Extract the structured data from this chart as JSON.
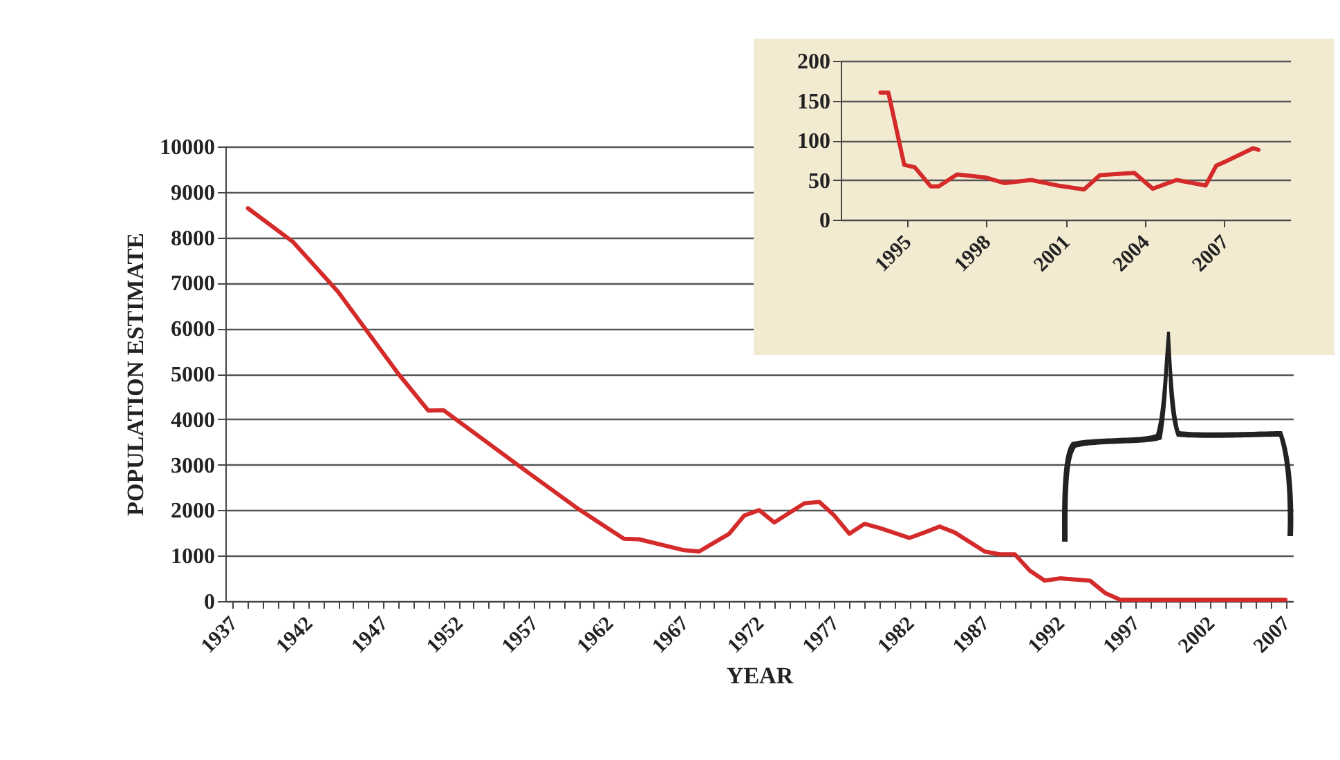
{
  "chart_data": [
    {
      "type": "line",
      "xlabel": "YEAR",
      "ylabel": "POPULATION ESTIMATE",
      "grid": "y",
      "color": "#d42a2a",
      "x": [
        1938,
        1941,
        1944,
        1948,
        1950,
        1951,
        1956,
        1960,
        1963,
        1964,
        1967,
        1968,
        1970,
        1971,
        1972,
        1973,
        1975,
        1976,
        1977,
        1978,
        1979,
        1980,
        1982,
        1983,
        1984,
        1985,
        1987,
        1988,
        1989,
        1990,
        1991,
        1992,
        1994,
        1995,
        1996,
        2007
      ],
      "values": [
        8640,
        7900,
        6800,
        5000,
        4190,
        4200,
        2980,
        2020,
        1370,
        1360,
        1120,
        1090,
        1480,
        1880,
        2000,
        1730,
        2150,
        2180,
        1880,
        1480,
        1700,
        1610,
        1390,
        1510,
        1640,
        1510,
        1090,
        1030,
        1030,
        670,
        450,
        500,
        450,
        180,
        30,
        30
      ],
      "xlim": [
        1936.5,
        2007.5
      ],
      "xticks": [
        1937,
        {
          "value": 1938,
          "label": null
        },
        {
          "value": 1939,
          "label": null
        },
        {
          "value": 1940,
          "label": null
        },
        {
          "value": 1941,
          "label": null
        },
        1942,
        {
          "value": 1943,
          "label": null
        },
        {
          "value": 1944,
          "label": null
        },
        {
          "value": 1945,
          "label": null
        },
        {
          "value": 1946,
          "label": null
        },
        1947,
        {
          "value": 1948,
          "label": null
        },
        {
          "value": 1949,
          "label": null
        },
        {
          "value": 1950,
          "label": null
        },
        {
          "value": 1951,
          "label": null
        },
        1952,
        {
          "value": 1953,
          "label": null
        },
        {
          "value": 1954,
          "label": null
        },
        {
          "value": 1955,
          "label": null
        },
        {
          "value": 1956,
          "label": null
        },
        1957,
        {
          "value": 1958,
          "label": null
        },
        {
          "value": 1959,
          "label": null
        },
        {
          "value": 1960,
          "label": null
        },
        {
          "value": 1961,
          "label": null
        },
        1962,
        {
          "value": 1963,
          "label": null
        },
        {
          "value": 1964,
          "label": null
        },
        {
          "value": 1965,
          "label": null
        },
        {
          "value": 1966,
          "label": null
        },
        1967,
        {
          "value": 1968,
          "label": null
        },
        {
          "value": 1969,
          "label": null
        },
        {
          "value": 1970,
          "label": null
        },
        {
          "value": 1971,
          "label": null
        },
        1972,
        {
          "value": 1973,
          "label": null
        },
        {
          "value": 1974,
          "label": null
        },
        {
          "value": 1975,
          "label": null
        },
        {
          "value": 1976,
          "label": null
        },
        1977,
        {
          "value": 1978,
          "label": null
        },
        {
          "value": 1979,
          "label": null
        },
        {
          "value": 1980,
          "label": null
        },
        {
          "value": 1981,
          "label": null
        },
        1982,
        {
          "value": 1983,
          "label": null
        },
        {
          "value": 1984,
          "label": null
        },
        {
          "value": 1985,
          "label": null
        },
        {
          "value": 1986,
          "label": null
        },
        1987,
        {
          "value": 1988,
          "label": null
        },
        {
          "value": 1989,
          "label": null
        },
        {
          "value": 1990,
          "label": null
        },
        {
          "value": 1991,
          "label": null
        },
        1992,
        {
          "value": 1993,
          "label": null
        },
        {
          "value": 1994,
          "label": null
        },
        {
          "value": 1995,
          "label": null
        },
        {
          "value": 1996,
          "label": null
        },
        1997,
        {
          "value": 1998,
          "label": null
        },
        {
          "value": 1999,
          "label": null
        },
        {
          "value": 2000,
          "label": null
        },
        {
          "value": 2001,
          "label": null
        },
        2002,
        {
          "value": 2003,
          "label": null
        },
        {
          "value": 2004,
          "label": null
        },
        {
          "value": 2005,
          "label": null
        },
        {
          "value": 2006,
          "label": null
        },
        2007
      ],
      "ylim": [
        0,
        10000
      ],
      "yticks": [
        0,
        1000,
        2000,
        3000,
        4000,
        5000,
        6000,
        7000,
        8000,
        9000,
        10000
      ]
    },
    {
      "type": "line",
      "grid": "y",
      "color": "#d42a2a",
      "x": [
        1994.0,
        1994.3,
        1994.9,
        1995.3,
        1995.9,
        1996.2,
        1996.9,
        1998.0,
        1998.7,
        1999.7,
        2000.7,
        2001.7,
        2002.3,
        2003.6,
        2004.3,
        2005.2,
        2006.3,
        2006.7,
        2007.1,
        2008.1,
        2008.3
      ],
      "values": [
        160,
        160,
        69,
        66,
        42,
        42,
        57,
        53,
        46,
        50,
        43,
        38,
        56,
        59,
        39,
        50,
        43,
        68,
        74,
        90,
        88
      ],
      "xlim": [
        1992.5,
        2009.5
      ],
      "xticks": [
        1995,
        1998,
        2001,
        2004,
        2007
      ],
      "ylim": [
        0,
        200
      ],
      "yticks": [
        0,
        50,
        100,
        150,
        200
      ]
    }
  ]
}
